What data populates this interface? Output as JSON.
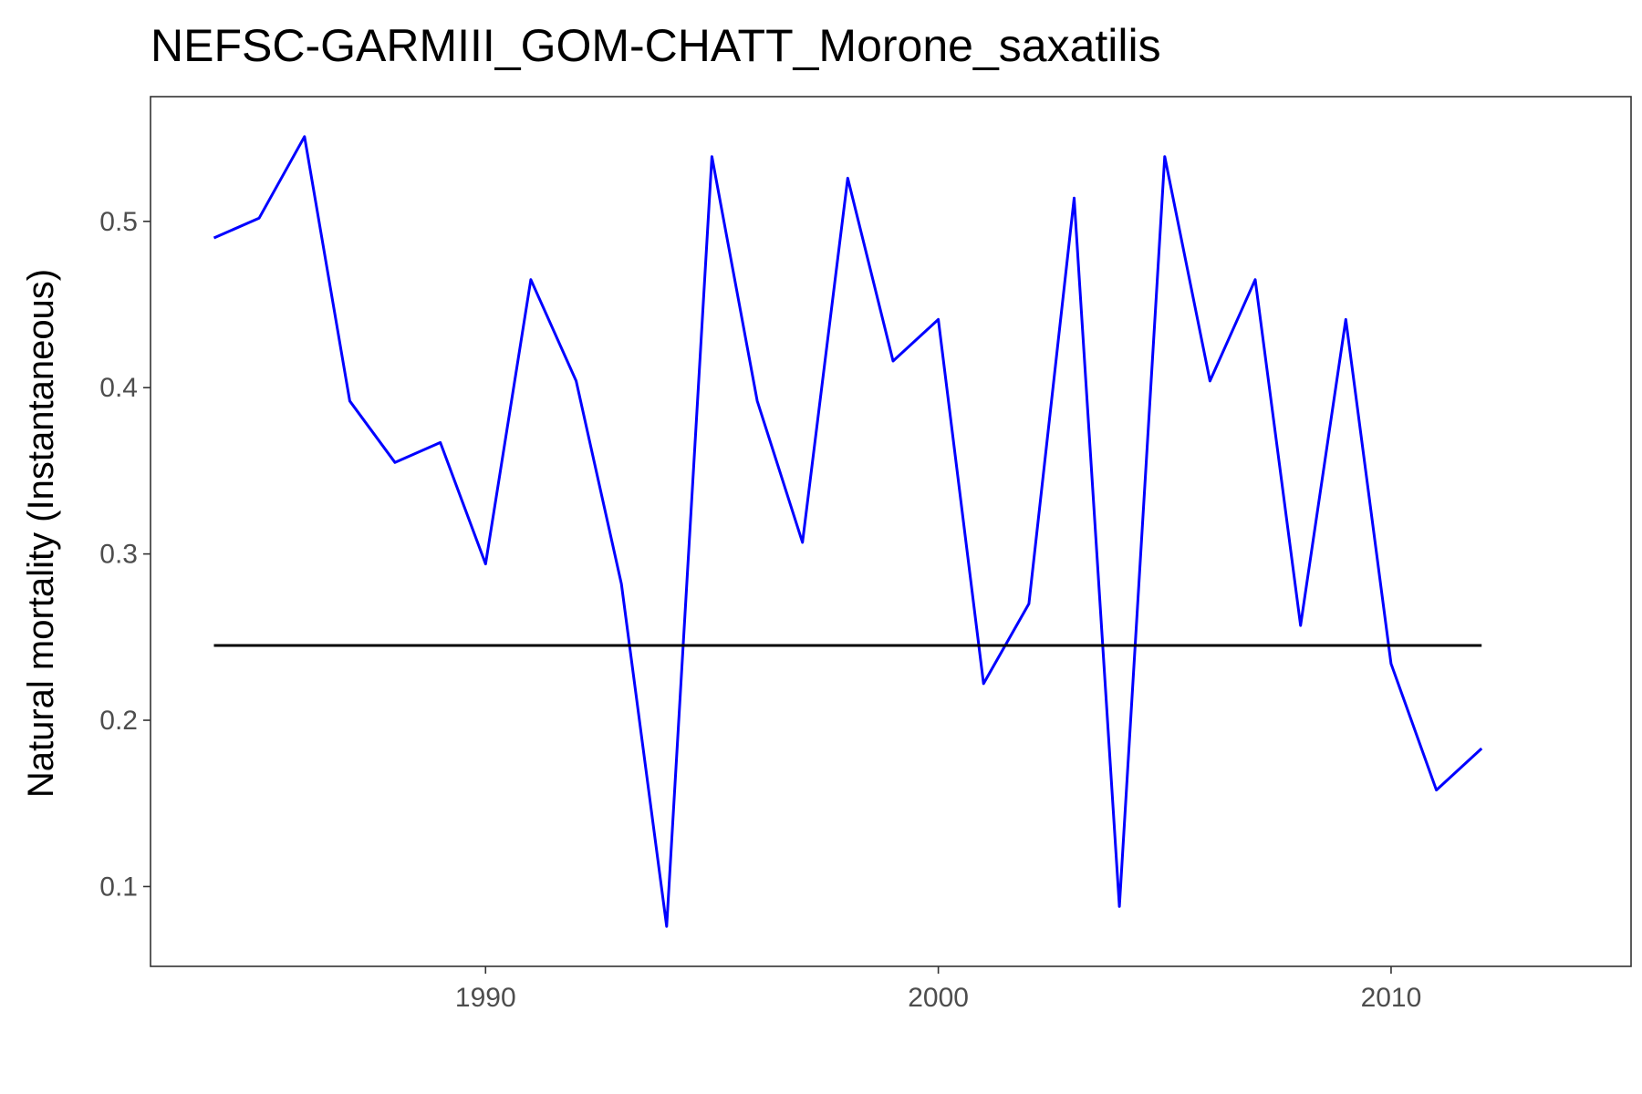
{
  "chart_data": {
    "type": "line",
    "title": "NEFSC-GARMIII_GOM-CHATT_Morone_saxatilis",
    "xlabel": "",
    "ylabel": "Natural mortality (Instantaneous)",
    "xlim": [
      1982.6,
      2015.3
    ],
    "ylim": [
      0.052,
      0.575
    ],
    "x_ticks": [
      1990,
      2000,
      2010
    ],
    "y_ticks": [
      0.1,
      0.2,
      0.3,
      0.4,
      0.5
    ],
    "grid": false,
    "legend": "none",
    "series": [
      {
        "color": "#0000ff",
        "x": [
          1984,
          1985,
          1986,
          1987,
          1988,
          1989,
          1990,
          1991,
          1992,
          1993,
          1994,
          1995,
          1996,
          1997,
          1998,
          1999,
          2000,
          2001,
          2002,
          2003,
          2004,
          2005,
          2006,
          2007,
          2008,
          2009,
          2010,
          2011,
          2012
        ],
        "values": [
          0.49,
          0.502,
          0.551,
          0.392,
          0.355,
          0.367,
          0.294,
          0.465,
          0.404,
          0.282,
          0.076,
          0.539,
          0.392,
          0.307,
          0.526,
          0.416,
          0.441,
          0.222,
          0.27,
          0.514,
          0.088,
          0.539,
          0.404,
          0.465,
          0.257,
          0.441,
          0.234,
          0.158,
          0.183
        ]
      },
      {
        "color": "#000000",
        "x": [
          1984,
          2012
        ],
        "values": [
          0.245,
          0.245
        ]
      }
    ]
  }
}
